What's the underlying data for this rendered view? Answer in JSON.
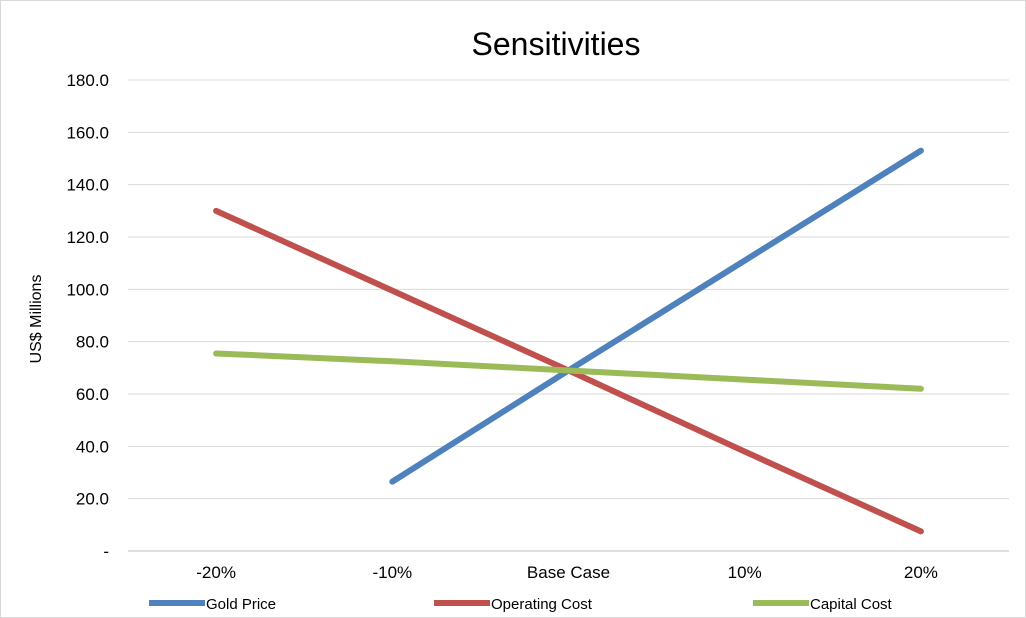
{
  "chart_data": {
    "type": "line",
    "title": "Sensitivities",
    "xlabel": "",
    "ylabel": "US$ Millions",
    "categories": [
      "-20%",
      "-10%",
      "Base Case",
      "10%",
      "20%"
    ],
    "ylim": [
      0,
      180
    ],
    "yticks": [
      0,
      20,
      40,
      60,
      80,
      100,
      120,
      140,
      160,
      180
    ],
    "ytick_labels": [
      "-",
      "20.0",
      "40.0",
      "60.0",
      "80.0",
      "100.0",
      "120.0",
      "140.0",
      "160.0",
      "180.0"
    ],
    "grid": true,
    "legend_position": "bottom",
    "series": [
      {
        "name": "Gold Price",
        "color": "#4f81bd",
        "values": [
          null,
          26.5,
          69.0,
          111.0,
          153.0
        ]
      },
      {
        "name": "Operating Cost",
        "color": "#c0504d",
        "values": [
          130.0,
          99.5,
          69.0,
          38.0,
          7.5
        ]
      },
      {
        "name": "Capital Cost",
        "color": "#9bbb59",
        "values": [
          75.5,
          72.5,
          69.0,
          65.5,
          62.0
        ]
      }
    ]
  }
}
